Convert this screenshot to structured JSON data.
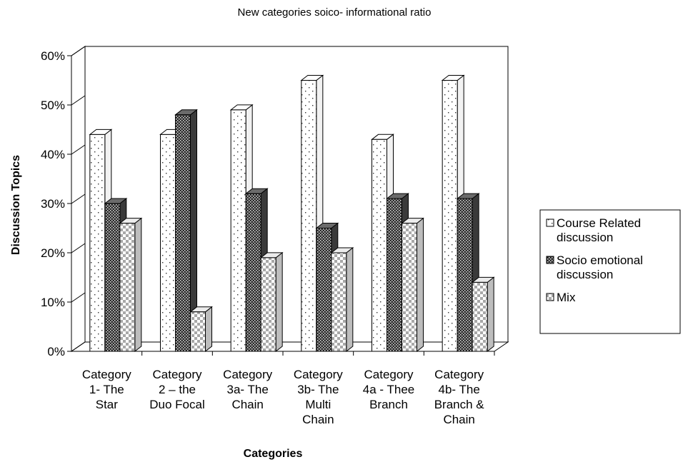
{
  "chart_data": {
    "type": "bar",
    "title": "New categories soico- informational ratio",
    "xlabel": "Categories",
    "ylabel": "Discussion Topics",
    "ylim": [
      0,
      0.6
    ],
    "yticks": [
      "0%",
      "10%",
      "20%",
      "30%",
      "40%",
      "50%",
      "60%"
    ],
    "categories": [
      [
        "Category",
        "1- The",
        "Star"
      ],
      [
        "Category",
        "2 – the",
        "Duo Focal"
      ],
      [
        "Category",
        "3a- The",
        "Chain"
      ],
      [
        "Category",
        "3b- The",
        "Multi",
        "Chain"
      ],
      [
        "Category",
        "4a  - Thee",
        "Branch"
      ],
      [
        "Category",
        "4b- The",
        "Branch &",
        "Chain"
      ]
    ],
    "series": [
      {
        "name": "Course Related discussion",
        "legend_lines": [
          "Course Related",
          "discussion"
        ],
        "pattern": "dots",
        "values": [
          0.44,
          0.44,
          0.49,
          0.55,
          0.43,
          0.55
        ]
      },
      {
        "name": "Socio emotional discussion",
        "legend_lines": [
          "Socio emotional",
          "discussion"
        ],
        "pattern": "crosshatch",
        "values": [
          0.3,
          0.48,
          0.32,
          0.25,
          0.31,
          0.31
        ]
      },
      {
        "name": "Mix",
        "legend_lines": [
          "Mix"
        ],
        "pattern": "checker",
        "values": [
          0.26,
          0.08,
          0.19,
          0.2,
          0.26,
          0.14
        ]
      }
    ],
    "legend_position": "right",
    "grid": false,
    "style": "3d-column"
  }
}
